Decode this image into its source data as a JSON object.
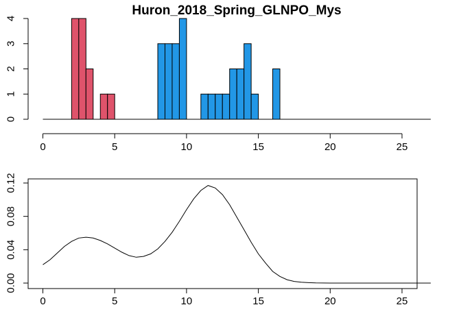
{
  "chart_data": [
    {
      "type": "bar",
      "title": "Huron_2018_Spring_GLNPO_Mys",
      "xlabel": "",
      "ylabel": "",
      "xlim": [
        0,
        27
      ],
      "ylim": [
        0,
        4
      ],
      "bin_width": 0.5,
      "x_ticks": [
        "0",
        "5",
        "10",
        "15",
        "20",
        "25"
      ],
      "y_ticks": [
        "0",
        "1",
        "2",
        "3",
        "4"
      ],
      "colors": {
        "red": "#DF536B",
        "blue": "#2297E6",
        "outline": "#000000"
      },
      "series": [
        {
          "color": "#DF536B",
          "bins": [
            {
              "x0": 2.0,
              "x1": 2.5,
              "count": 4
            },
            {
              "x0": 2.5,
              "x1": 3.0,
              "count": 4
            },
            {
              "x0": 3.0,
              "x1": 3.5,
              "count": 2
            },
            {
              "x0": 4.0,
              "x1": 4.5,
              "count": 1
            },
            {
              "x0": 4.5,
              "x1": 5.0,
              "count": 1
            }
          ]
        },
        {
          "color": "#2297E6",
          "bins": [
            {
              "x0": 8.0,
              "x1": 8.5,
              "count": 3
            },
            {
              "x0": 8.5,
              "x1": 9.0,
              "count": 3
            },
            {
              "x0": 9.0,
              "x1": 9.5,
              "count": 3
            },
            {
              "x0": 9.5,
              "x1": 10.0,
              "count": 4
            },
            {
              "x0": 11.0,
              "x1": 11.5,
              "count": 1
            },
            {
              "x0": 11.5,
              "x1": 12.0,
              "count": 1
            },
            {
              "x0": 12.0,
              "x1": 12.5,
              "count": 1
            },
            {
              "x0": 12.5,
              "x1": 13.0,
              "count": 1
            },
            {
              "x0": 13.0,
              "x1": 13.5,
              "count": 2
            },
            {
              "x0": 13.5,
              "x1": 14.0,
              "count": 2
            },
            {
              "x0": 14.0,
              "x1": 14.5,
              "count": 3
            },
            {
              "x0": 14.5,
              "x1": 15.0,
              "count": 1
            },
            {
              "x0": 16.0,
              "x1": 16.5,
              "count": 2
            }
          ]
        }
      ],
      "baseline": {
        "from": 0,
        "to": 27
      }
    },
    {
      "type": "line",
      "title": "",
      "xlabel": "",
      "ylabel": "",
      "xlim": [
        0,
        27
      ],
      "ylim": [
        0,
        0.12
      ],
      "x_ticks": [
        "0",
        "5",
        "10",
        "15",
        "20",
        "25"
      ],
      "y_ticks": [
        "0.00",
        "0.04",
        "0.08",
        "0.12"
      ],
      "series": [
        {
          "color": "#000000",
          "x": [
            0,
            0.5,
            1,
            1.5,
            2,
            2.5,
            3,
            3.5,
            4,
            4.5,
            5,
            5.5,
            6,
            6.5,
            7,
            7.5,
            8,
            8.5,
            9,
            9.5,
            10,
            10.5,
            11,
            11.5,
            12,
            12.5,
            13,
            13.5,
            14,
            14.5,
            15,
            15.5,
            16,
            16.5,
            17,
            17.5,
            18,
            18.5,
            19,
            19.5,
            20,
            21,
            22,
            23,
            24,
            25,
            26,
            27
          ],
          "y": [
            0.022,
            0.028,
            0.036,
            0.044,
            0.05,
            0.054,
            0.055,
            0.054,
            0.051,
            0.047,
            0.042,
            0.037,
            0.033,
            0.031,
            0.032,
            0.035,
            0.041,
            0.05,
            0.061,
            0.074,
            0.088,
            0.101,
            0.111,
            0.117,
            0.114,
            0.106,
            0.094,
            0.079,
            0.064,
            0.049,
            0.035,
            0.024,
            0.014,
            0.008,
            0.004,
            0.002,
            0.001,
            0.0005,
            0.0002,
            0.0001,
            0,
            0,
            0,
            0,
            0,
            0,
            0,
            0
          ]
        }
      ]
    }
  ]
}
